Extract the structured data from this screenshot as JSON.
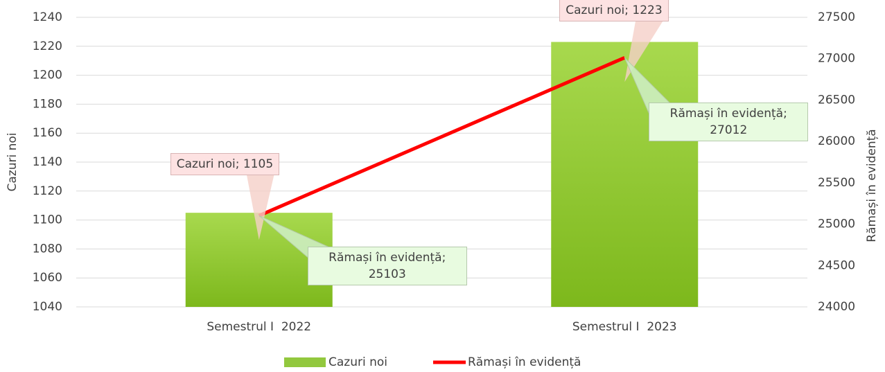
{
  "chart_data": {
    "type": "bar-line",
    "categories": [
      "Semestrul I  2022",
      "Semestrul I  2023"
    ],
    "series": [
      {
        "name": "Cazuri noi",
        "type": "bar",
        "color": "#92c83e",
        "values": [
          1105,
          1223
        ],
        "value_labels": [
          "Cazuri noi; 1105",
          "Cazuri noi; 1223"
        ]
      },
      {
        "name": "Rămași în evidență",
        "type": "line",
        "axis": "y2",
        "color": "#ff0000",
        "values": [
          25103,
          27012
        ],
        "value_labels": [
          "Rămași în evidență; 25103",
          "Rămași în evidență; 27012"
        ]
      }
    ],
    "ylabel": "Cazuri noi",
    "y2label": "Rămași în evidență",
    "ylim": [
      1040,
      1240
    ],
    "yticks": [
      1040,
      1060,
      1080,
      1100,
      1120,
      1140,
      1160,
      1180,
      1200,
      1220,
      1240
    ],
    "y2lim": [
      24000,
      27500
    ],
    "y2ticks": [
      24000,
      24500,
      25000,
      25500,
      26000,
      26500,
      27000,
      27500
    ],
    "grid": true,
    "legend": "bottom"
  }
}
